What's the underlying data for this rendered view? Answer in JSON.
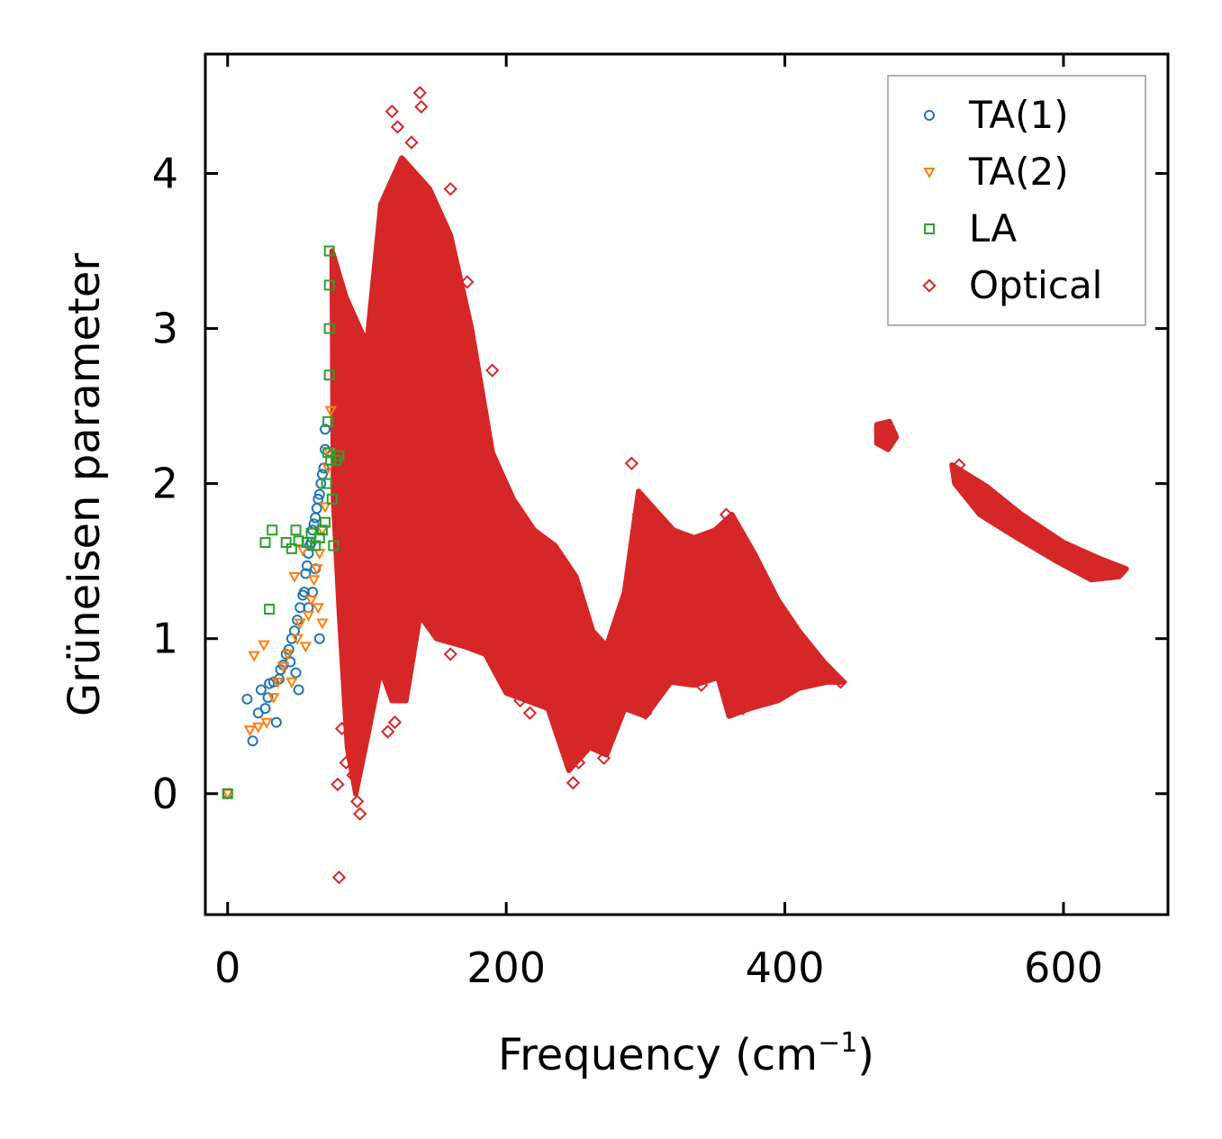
{
  "chart_data": {
    "type": "scatter",
    "title": "",
    "xlabel": "Frequency (cm",
    "xlabel_sup": "−1",
    "xlabel_close": ")",
    "ylabel": "Grüneisen parameter",
    "xlim": [
      -16,
      675
    ],
    "ylim": [
      -0.78,
      4.77
    ],
    "xticks": [
      0,
      200,
      400,
      600
    ],
    "yticks": [
      0,
      1,
      2,
      3,
      4
    ],
    "legend_position": "top-right",
    "series": [
      {
        "name": "TA(1)",
        "color": "#1f77b4",
        "marker": "circle",
        "points": [
          [
            0,
            0
          ],
          [
            14,
            0.61
          ],
          [
            18,
            0.34
          ],
          [
            22,
            0.52
          ],
          [
            24,
            0.67
          ],
          [
            27,
            0.55
          ],
          [
            29,
            0.62
          ],
          [
            30,
            0.71
          ],
          [
            33,
            0.72
          ],
          [
            35,
            0.46
          ],
          [
            37,
            0.74
          ],
          [
            38,
            0.8
          ],
          [
            40,
            0.83
          ],
          [
            42,
            0.9
          ],
          [
            44,
            0.93
          ],
          [
            45,
            0.85
          ],
          [
            46,
            1.0
          ],
          [
            48,
            1.05
          ],
          [
            49,
            0.78
          ],
          [
            50,
            1.12
          ],
          [
            51,
            0.67
          ],
          [
            52,
            1.2
          ],
          [
            54,
            1.28
          ],
          [
            55,
            1.3
          ],
          [
            56,
            1.42
          ],
          [
            57,
            1.47
          ],
          [
            58,
            1.55
          ],
          [
            59,
            1.6
          ],
          [
            60,
            1.62
          ],
          [
            61,
            1.7
          ],
          [
            62,
            1.74
          ],
          [
            63,
            1.78
          ],
          [
            64,
            1.84
          ],
          [
            65,
            1.9
          ],
          [
            66,
            1.93
          ],
          [
            67,
            2.0
          ],
          [
            68,
            2.06
          ],
          [
            69,
            2.1
          ],
          [
            70,
            2.22
          ],
          [
            70,
            2.35
          ],
          [
            66,
            1.0
          ],
          [
            63,
            1.45
          ],
          [
            61,
            1.3
          ],
          [
            58,
            1.2
          ]
        ]
      },
      {
        "name": "TA(2)",
        "color": "#ff7f0e",
        "marker": "triangle-down",
        "points": [
          [
            0,
            0
          ],
          [
            16,
            0.41
          ],
          [
            19,
            0.89
          ],
          [
            22,
            0.43
          ],
          [
            26,
            0.96
          ],
          [
            28,
            0.46
          ],
          [
            33,
            0.62
          ],
          [
            36,
            0.72
          ],
          [
            40,
            0.82
          ],
          [
            43,
            0.9
          ],
          [
            46,
            0.72
          ],
          [
            48,
            1.4
          ],
          [
            50,
            1.0
          ],
          [
            52,
            1.1
          ],
          [
            54,
            1.57
          ],
          [
            56,
            0.95
          ],
          [
            58,
            1.15
          ],
          [
            60,
            1.25
          ],
          [
            62,
            1.38
          ],
          [
            64,
            1.45
          ],
          [
            66,
            1.55
          ],
          [
            68,
            1.7
          ],
          [
            70,
            1.85
          ],
          [
            72,
            2.1
          ],
          [
            73,
            2.2
          ],
          [
            74,
            2.47
          ],
          [
            68,
            1.1
          ],
          [
            65,
            1.2
          ]
        ]
      },
      {
        "name": "LA",
        "color": "#2ca02c",
        "marker": "square",
        "points": [
          [
            0,
            0
          ],
          [
            27,
            1.62
          ],
          [
            30,
            1.19
          ],
          [
            32,
            1.7
          ],
          [
            42,
            1.62
          ],
          [
            46,
            1.58
          ],
          [
            49,
            1.7
          ],
          [
            51,
            1.63
          ],
          [
            57,
            1.62
          ],
          [
            60,
            1.68
          ],
          [
            63,
            1.6
          ],
          [
            66,
            1.65
          ],
          [
            68,
            1.7
          ],
          [
            70,
            1.75
          ],
          [
            71,
            2.0
          ],
          [
            72,
            2.2
          ],
          [
            72,
            2.4
          ],
          [
            73,
            2.7
          ],
          [
            73,
            3.0
          ],
          [
            73,
            3.28
          ],
          [
            73,
            3.5
          ],
          [
            74,
            2.15
          ],
          [
            75,
            1.9
          ],
          [
            76,
            1.6
          ],
          [
            78,
            2.15
          ],
          [
            80,
            2.18
          ]
        ]
      },
      {
        "name": "Optical",
        "color": "#d62728",
        "marker": "diamond",
        "points": [
          [
            80,
            -0.54
          ],
          [
            79,
            0.06
          ],
          [
            82,
            0.42
          ],
          [
            85,
            0.2
          ],
          [
            90,
            0.12
          ],
          [
            93,
            -0.05
          ],
          [
            95,
            -0.13
          ],
          [
            96,
            0.3
          ],
          [
            98,
            0.6
          ],
          [
            115,
            0.4
          ],
          [
            120,
            0.46
          ],
          [
            125,
            0.7
          ],
          [
            118,
            4.4
          ],
          [
            122,
            4.3
          ],
          [
            138,
            4.52
          ],
          [
            139,
            4.43
          ],
          [
            132,
            4.2
          ],
          [
            160,
            3.9
          ],
          [
            172,
            3.3
          ],
          [
            178,
            2.58
          ],
          [
            190,
            2.73
          ],
          [
            135,
            1.3
          ],
          [
            128,
            0.8
          ],
          [
            160,
            0.9
          ],
          [
            200,
            0.7
          ],
          [
            210,
            0.6
          ],
          [
            217,
            0.52
          ],
          [
            248,
            0.07
          ],
          [
            252,
            0.2
          ],
          [
            270,
            0.23
          ],
          [
            290,
            2.13
          ],
          [
            295,
            1.8
          ],
          [
            300,
            0.52
          ],
          [
            320,
            0.75
          ],
          [
            340,
            0.7
          ],
          [
            358,
            1.8
          ],
          [
            370,
            0.55
          ],
          [
            382,
            0.6
          ],
          [
            395,
            0.8
          ],
          [
            410,
            1.0
          ],
          [
            425,
            0.85
          ],
          [
            440,
            0.72
          ],
          [
            470,
            2.35
          ],
          [
            473,
            2.3
          ],
          [
            476,
            2.33
          ],
          [
            525,
            2.12
          ],
          [
            540,
            1.95
          ],
          [
            555,
            1.85
          ],
          [
            570,
            1.7
          ],
          [
            585,
            1.65
          ],
          [
            600,
            1.58
          ],
          [
            615,
            1.5
          ],
          [
            625,
            1.42
          ],
          [
            640,
            1.44
          ]
        ]
      }
    ],
    "optical_bands": [
      [
        [
          75,
          3.5
        ],
        [
          85,
          3.2
        ],
        [
          100,
          2.9
        ],
        [
          110,
          3.8
        ],
        [
          125,
          4.1
        ],
        [
          145,
          3.9
        ],
        [
          160,
          3.6
        ],
        [
          175,
          3.0
        ],
        [
          190,
          2.2
        ],
        [
          205,
          1.9
        ],
        [
          220,
          1.7
        ],
        [
          235,
          1.6
        ],
        [
          250,
          1.4
        ],
        [
          262,
          1.05
        ],
        [
          272,
          0.95
        ],
        [
          285,
          1.3
        ],
        [
          295,
          1.95
        ],
        [
          305,
          1.85
        ],
        [
          320,
          1.7
        ],
        [
          335,
          1.65
        ],
        [
          350,
          1.7
        ],
        [
          362,
          1.8
        ],
        [
          378,
          1.55
        ],
        [
          395,
          1.25
        ],
        [
          410,
          1.05
        ],
        [
          428,
          0.85
        ],
        [
          442,
          0.72
        ],
        [
          430,
          0.72
        ],
        [
          410,
          0.68
        ],
        [
          395,
          0.6
        ],
        [
          375,
          0.55
        ],
        [
          360,
          0.5
        ],
        [
          352,
          0.75
        ],
        [
          335,
          0.7
        ],
        [
          318,
          0.72
        ],
        [
          300,
          0.5
        ],
        [
          285,
          0.55
        ],
        [
          272,
          0.25
        ],
        [
          260,
          0.3
        ],
        [
          245,
          0.15
        ],
        [
          230,
          0.55
        ],
        [
          215,
          0.6
        ],
        [
          200,
          0.65
        ],
        [
          185,
          0.9
        ],
        [
          170,
          0.95
        ],
        [
          150,
          1.0
        ],
        [
          138,
          1.15
        ],
        [
          128,
          0.6
        ],
        [
          118,
          0.6
        ],
        [
          110,
          0.8
        ],
        [
          100,
          0.35
        ],
        [
          92,
          0.0
        ],
        [
          86,
          0.3
        ],
        [
          80,
          1.2
        ],
        [
          76,
          1.9
        ]
      ],
      [
        [
          520,
          2.12
        ],
        [
          545,
          1.98
        ],
        [
          570,
          1.8
        ],
        [
          600,
          1.62
        ],
        [
          625,
          1.52
        ],
        [
          645,
          1.45
        ],
        [
          640,
          1.4
        ],
        [
          620,
          1.38
        ],
        [
          595,
          1.5
        ],
        [
          565,
          1.66
        ],
        [
          540,
          1.8
        ],
        [
          522,
          2.0
        ]
      ],
      [
        [
          466,
          2.38
        ],
        [
          475,
          2.4
        ],
        [
          480,
          2.3
        ],
        [
          474,
          2.22
        ],
        [
          466,
          2.26
        ]
      ]
    ]
  }
}
